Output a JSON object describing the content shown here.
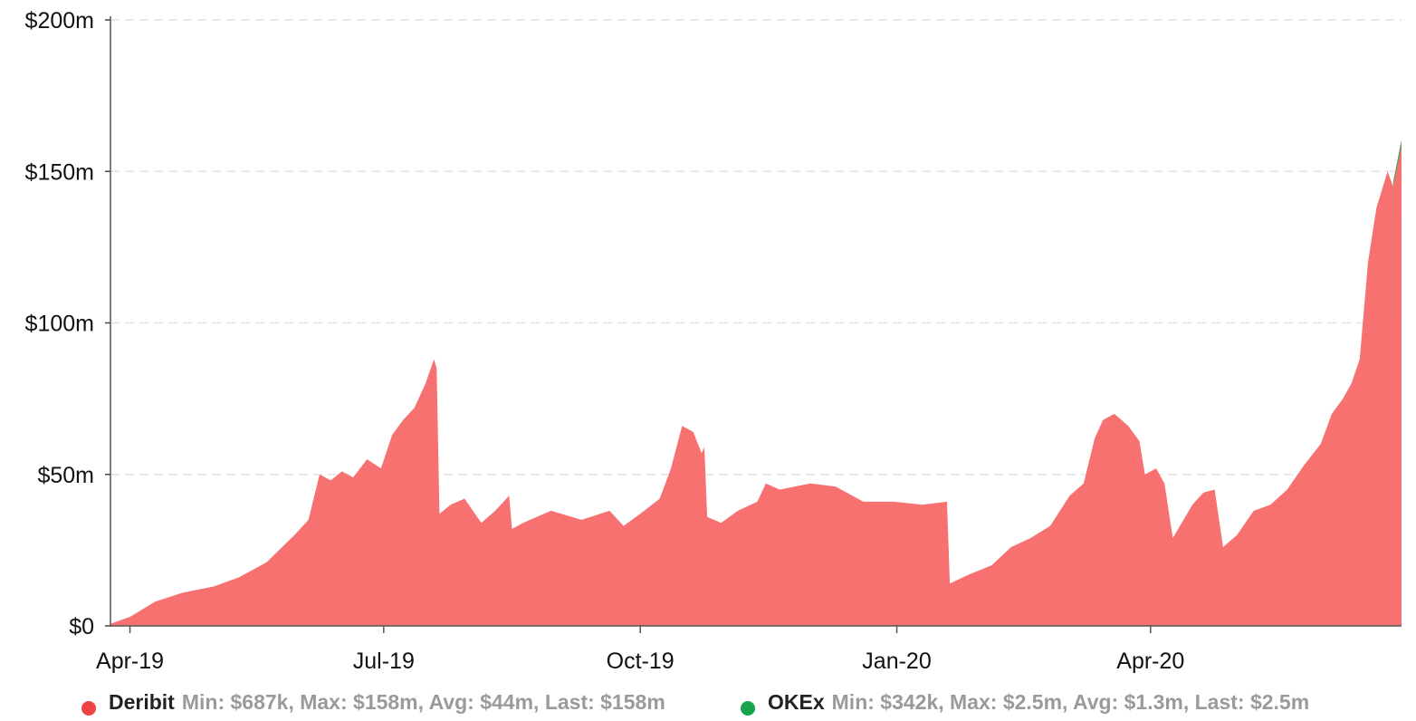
{
  "chart_data": {
    "type": "area",
    "x_axis": {
      "ticks": [
        "Apr-19",
        "Jul-19",
        "Oct-19",
        "Jan-20",
        "Apr-20"
      ],
      "tick_dates": [
        "2019-04-01",
        "2019-07-01",
        "2019-10-01",
        "2020-01-01",
        "2020-04-01"
      ],
      "range": [
        "2019-03-25",
        "2020-06-30"
      ]
    },
    "y_axis": {
      "ticks": [
        "$0",
        "$50m",
        "$100m",
        "$150m",
        "$200m"
      ],
      "tick_values": [
        0,
        50,
        100,
        150,
        200
      ],
      "unit": "$m",
      "ylim": [
        0,
        200
      ]
    },
    "grid": "horizontal dashed",
    "legend_position": "bottom",
    "stacked": true,
    "series": [
      {
        "name": "Deribit",
        "stats": "Min: $687k, Max: $158m, Avg: $44m, Last: $158m",
        "color": "#f87171",
        "points": [
          [
            "2019-03-25",
            0.7
          ],
          [
            "2019-04-01",
            3
          ],
          [
            "2019-04-10",
            8
          ],
          [
            "2019-04-20",
            11
          ],
          [
            "2019-05-01",
            13
          ],
          [
            "2019-05-10",
            16
          ],
          [
            "2019-05-20",
            21
          ],
          [
            "2019-05-30",
            30
          ],
          [
            "2019-06-04",
            35
          ],
          [
            "2019-06-08",
            50
          ],
          [
            "2019-06-12",
            48
          ],
          [
            "2019-06-16",
            51
          ],
          [
            "2019-06-20",
            49
          ],
          [
            "2019-06-25",
            55
          ],
          [
            "2019-06-30",
            52
          ],
          [
            "2019-07-04",
            63
          ],
          [
            "2019-07-08",
            68
          ],
          [
            "2019-07-12",
            72
          ],
          [
            "2019-07-16",
            80
          ],
          [
            "2019-07-19",
            88
          ],
          [
            "2019-07-20",
            85
          ],
          [
            "2019-07-21",
            37
          ],
          [
            "2019-07-25",
            40
          ],
          [
            "2019-07-30",
            42
          ],
          [
            "2019-08-05",
            34
          ],
          [
            "2019-08-10",
            38
          ],
          [
            "2019-08-15",
            43
          ],
          [
            "2019-08-16",
            32
          ],
          [
            "2019-08-20",
            34
          ],
          [
            "2019-08-30",
            38
          ],
          [
            "2019-09-10",
            35
          ],
          [
            "2019-09-20",
            38
          ],
          [
            "2019-09-25",
            33
          ],
          [
            "2019-10-01",
            37
          ],
          [
            "2019-10-08",
            42
          ],
          [
            "2019-10-12",
            52
          ],
          [
            "2019-10-16",
            66
          ],
          [
            "2019-10-20",
            64
          ],
          [
            "2019-10-23",
            57
          ],
          [
            "2019-10-24",
            59
          ],
          [
            "2019-10-25",
            36
          ],
          [
            "2019-10-30",
            34
          ],
          [
            "2019-11-05",
            38
          ],
          [
            "2019-11-12",
            41
          ],
          [
            "2019-11-15",
            47
          ],
          [
            "2019-11-20",
            45
          ],
          [
            "2019-12-01",
            47
          ],
          [
            "2019-12-10",
            46
          ],
          [
            "2019-12-20",
            41
          ],
          [
            "2019-12-31",
            41
          ],
          [
            "2020-01-10",
            40
          ],
          [
            "2020-01-19",
            41
          ],
          [
            "2020-01-20",
            14
          ],
          [
            "2020-01-27",
            17
          ],
          [
            "2020-02-04",
            20
          ],
          [
            "2020-02-11",
            26
          ],
          [
            "2020-02-18",
            29
          ],
          [
            "2020-02-25",
            33
          ],
          [
            "2020-03-03",
            43
          ],
          [
            "2020-03-08",
            47
          ],
          [
            "2020-03-12",
            62
          ],
          [
            "2020-03-15",
            68
          ],
          [
            "2020-03-19",
            70
          ],
          [
            "2020-03-24",
            66
          ],
          [
            "2020-03-28",
            61
          ],
          [
            "2020-03-30",
            50
          ],
          [
            "2020-04-03",
            52
          ],
          [
            "2020-04-06",
            47
          ],
          [
            "2020-04-09",
            29
          ],
          [
            "2020-04-16",
            40
          ],
          [
            "2020-04-20",
            44
          ],
          [
            "2020-04-24",
            45
          ],
          [
            "2020-04-27",
            26
          ],
          [
            "2020-05-02",
            30
          ],
          [
            "2020-05-08",
            38
          ],
          [
            "2020-05-14",
            40
          ],
          [
            "2020-05-20",
            45
          ],
          [
            "2020-05-26",
            53
          ],
          [
            "2020-06-01",
            60
          ],
          [
            "2020-06-05",
            70
          ],
          [
            "2020-06-09",
            75
          ],
          [
            "2020-06-12",
            80
          ],
          [
            "2020-06-15",
            88
          ],
          [
            "2020-06-18",
            120
          ],
          [
            "2020-06-21",
            138
          ],
          [
            "2020-06-25",
            150
          ],
          [
            "2020-06-27",
            145
          ],
          [
            "2020-06-29",
            155
          ],
          [
            "2020-06-30",
            158
          ]
        ]
      },
      {
        "name": "OKEx",
        "stats": "Min: $342k, Max: $2.5m, Avg: $1.3m, Last: $2.5m",
        "color": "#5b9a68",
        "points": [
          [
            "2020-06-21",
            0.34
          ],
          [
            "2020-06-24",
            0.9
          ],
          [
            "2020-06-27",
            1.6
          ],
          [
            "2020-06-30",
            2.5
          ]
        ]
      }
    ]
  }
}
